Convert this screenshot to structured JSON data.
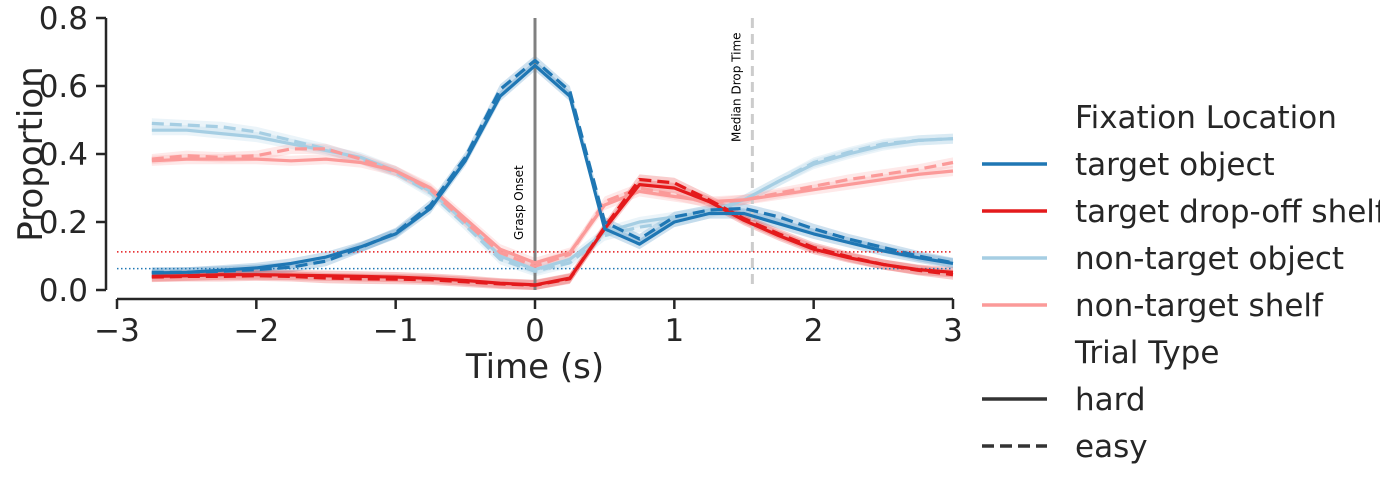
{
  "chart_data": {
    "type": "line",
    "xlabel": "Time (s)",
    "ylabel": "Proportion",
    "xlim": [
      -3,
      3
    ],
    "ylim": [
      0,
      0.8
    ],
    "xticks": [
      -3,
      -2,
      -1,
      0,
      1,
      2,
      3
    ],
    "xtick_labels": [
      "−3",
      "−2",
      "−1",
      "0",
      "1",
      "2",
      "3"
    ],
    "yticks": [
      0,
      0.2,
      0.4,
      0.6,
      0.8
    ],
    "ytick_labels": [
      "0.0",
      "0.2",
      "0.4",
      "0.6",
      "0.8"
    ],
    "grid": false,
    "legend_placement": "right",
    "x": [
      -2.75,
      -2.5,
      -2.25,
      -2.0,
      -1.75,
      -1.5,
      -1.25,
      -1.0,
      -0.75,
      -0.5,
      -0.25,
      0.0,
      0.25,
      0.5,
      0.75,
      1.0,
      1.25,
      1.5,
      1.75,
      2.0,
      2.25,
      2.5,
      2.75,
      3.0
    ],
    "series": [
      {
        "location": "target object",
        "trial": "hard",
        "color": "#1f77b4",
        "dash": "solid",
        "values": [
          0.05,
          0.052,
          0.058,
          0.065,
          0.078,
          0.097,
          0.127,
          0.165,
          0.24,
          0.38,
          0.57,
          0.66,
          0.57,
          0.18,
          0.135,
          0.2,
          0.225,
          0.225,
          0.195,
          0.165,
          0.14,
          0.115,
          0.095,
          0.078
        ]
      },
      {
        "location": "target object",
        "trial": "easy",
        "color": "#1f77b4",
        "dash": "dashed",
        "values": [
          0.052,
          0.052,
          0.055,
          0.06,
          0.067,
          0.085,
          0.125,
          0.168,
          0.25,
          0.39,
          0.59,
          0.675,
          0.585,
          0.2,
          0.15,
          0.215,
          0.235,
          0.24,
          0.215,
          0.18,
          0.15,
          0.125,
          0.1,
          0.08
        ]
      },
      {
        "location": "target drop-off shelf",
        "trial": "hard",
        "color": "#e41a1c",
        "dash": "solid",
        "values": [
          0.04,
          0.042,
          0.045,
          0.045,
          0.044,
          0.042,
          0.04,
          0.038,
          0.034,
          0.028,
          0.02,
          0.015,
          0.035,
          0.18,
          0.31,
          0.3,
          0.26,
          0.205,
          0.16,
          0.12,
          0.095,
          0.075,
          0.06,
          0.052
        ]
      },
      {
        "location": "target drop-off shelf",
        "trial": "easy",
        "color": "#e41a1c",
        "dash": "dashed",
        "values": [
          0.038,
          0.04,
          0.04,
          0.042,
          0.04,
          0.035,
          0.033,
          0.032,
          0.03,
          0.024,
          0.018,
          0.014,
          0.033,
          0.185,
          0.325,
          0.315,
          0.265,
          0.21,
          0.165,
          0.125,
          0.098,
          0.075,
          0.058,
          0.045
        ]
      },
      {
        "location": "non-target object",
        "trial": "hard",
        "color": "#a6cee3",
        "dash": "solid",
        "values": [
          0.47,
          0.47,
          0.46,
          0.45,
          0.43,
          0.41,
          0.39,
          0.35,
          0.29,
          0.2,
          0.1,
          0.06,
          0.09,
          0.17,
          0.2,
          0.215,
          0.23,
          0.265,
          0.32,
          0.37,
          0.4,
          0.425,
          0.44,
          0.445
        ]
      },
      {
        "location": "non-target object",
        "trial": "easy",
        "color": "#a6cee3",
        "dash": "dashed",
        "values": [
          0.49,
          0.485,
          0.48,
          0.465,
          0.44,
          0.415,
          0.385,
          0.345,
          0.285,
          0.19,
          0.09,
          0.055,
          0.08,
          0.16,
          0.185,
          0.2,
          0.225,
          0.265,
          0.32,
          0.375,
          0.405,
          0.43,
          0.44,
          0.445
        ]
      },
      {
        "location": "non-target shelf",
        "trial": "hard",
        "color": "#fb9a99",
        "dash": "solid",
        "values": [
          0.38,
          0.385,
          0.385,
          0.385,
          0.38,
          0.385,
          0.375,
          0.35,
          0.3,
          0.21,
          0.12,
          0.08,
          0.11,
          0.25,
          0.29,
          0.275,
          0.26,
          0.265,
          0.28,
          0.295,
          0.31,
          0.325,
          0.34,
          0.35
        ]
      },
      {
        "location": "non-target shelf",
        "trial": "easy",
        "color": "#fb9a99",
        "dash": "dashed",
        "values": [
          0.385,
          0.395,
          0.39,
          0.395,
          0.415,
          0.415,
          0.385,
          0.35,
          0.295,
          0.2,
          0.11,
          0.07,
          0.105,
          0.26,
          0.3,
          0.28,
          0.255,
          0.265,
          0.285,
          0.305,
          0.325,
          0.34,
          0.355,
          0.375
        ]
      }
    ],
    "reference_lines": [
      {
        "orientation": "vertical",
        "x": 0.0,
        "color": "#808080",
        "style": "solid",
        "label": "Grasp Onset"
      },
      {
        "orientation": "vertical",
        "x": 1.56,
        "color": "#cccccc",
        "style": "dashed",
        "label": "Median Drop Time"
      },
      {
        "orientation": "horizontal",
        "y": 0.112,
        "color": "#e41a1c",
        "style": "dotted"
      },
      {
        "orientation": "horizontal",
        "y": 0.063,
        "color": "#1f77b4",
        "style": "dotted"
      }
    ],
    "legend": {
      "groups": [
        {
          "title": "Fixation Location",
          "entries": [
            {
              "label": "target object",
              "color": "#1f77b4",
              "dash": "solid"
            },
            {
              "label": "target drop-off shelf",
              "color": "#e41a1c",
              "dash": "solid"
            },
            {
              "label": "non-target object",
              "color": "#a6cee3",
              "dash": "solid"
            },
            {
              "label": "non-target shelf",
              "color": "#fb9a99",
              "dash": "solid"
            }
          ]
        },
        {
          "title": "Trial Type",
          "entries": [
            {
              "label": "hard",
              "color": "#333333",
              "dash": "solid"
            },
            {
              "label": "easy",
              "color": "#333333",
              "dash": "dashed"
            }
          ]
        }
      ]
    }
  }
}
